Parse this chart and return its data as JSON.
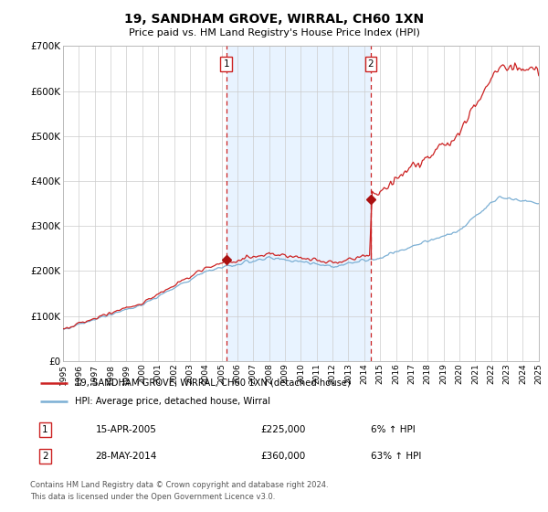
{
  "title": "19, SANDHAM GROVE, WIRRAL, CH60 1XN",
  "subtitle": "Price paid vs. HM Land Registry's House Price Index (HPI)",
  "ylim": [
    0,
    700000
  ],
  "yticks": [
    0,
    100000,
    200000,
    300000,
    400000,
    500000,
    600000,
    700000
  ],
  "ytick_labels": [
    "£0",
    "£100K",
    "£200K",
    "£300K",
    "£400K",
    "£500K",
    "£600K",
    "£700K"
  ],
  "x_start_year": 1995,
  "x_end_year": 2025,
  "hpi_color": "#7bafd4",
  "price_color": "#cc2222",
  "marker_color": "#aa1111",
  "purchase1_year": 2005.29,
  "purchase1_price": 225000,
  "purchase2_year": 2014.41,
  "purchase2_price": 360000,
  "shade_color": "#ddeeff",
  "shade_alpha": 0.65,
  "legend_label1": "19, SANDHAM GROVE, WIRRAL, CH60 1XN (detached house)",
  "legend_label2": "HPI: Average price, detached house, Wirral",
  "table_row1": [
    "1",
    "15-APR-2005",
    "£225,000",
    "6% ↑ HPI"
  ],
  "table_row2": [
    "2",
    "28-MAY-2014",
    "£360,000",
    "63% ↑ HPI"
  ],
  "footer1": "Contains HM Land Registry data © Crown copyright and database right 2024.",
  "footer2": "This data is licensed under the Open Government Licence v3.0.",
  "grid_color": "#cccccc",
  "box_edge_color": "#cc2222"
}
